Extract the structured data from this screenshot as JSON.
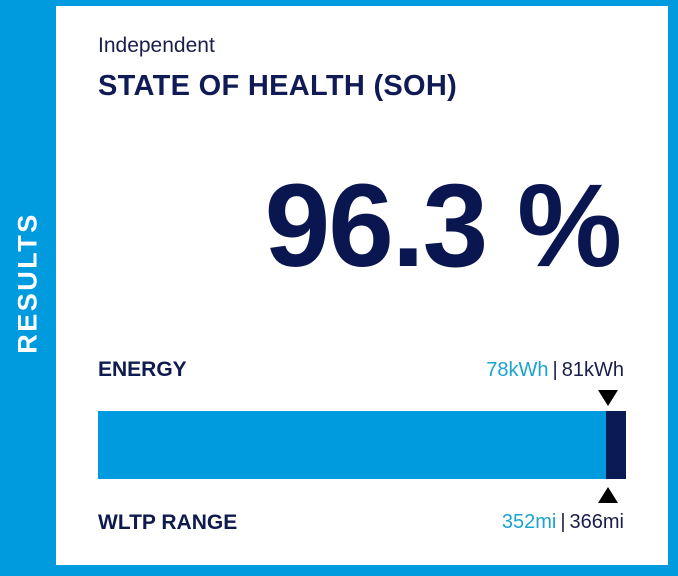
{
  "side_label": "RESULTS",
  "header": {
    "subtitle": "Independent",
    "title": "STATE OF HEALTH (SOH)"
  },
  "soh": {
    "value_text": "96.3 %",
    "fraction": 0.963
  },
  "energy": {
    "label": "ENERGY",
    "current": "78kWh",
    "separator": "|",
    "original": "81kWh"
  },
  "range": {
    "label": "WLTP RANGE",
    "current": "352mi",
    "separator": "|",
    "original": "366mi"
  },
  "colors": {
    "accent": "#009bde",
    "dark_navy": "#0a1a52",
    "current_value": "#1aa3cf"
  }
}
